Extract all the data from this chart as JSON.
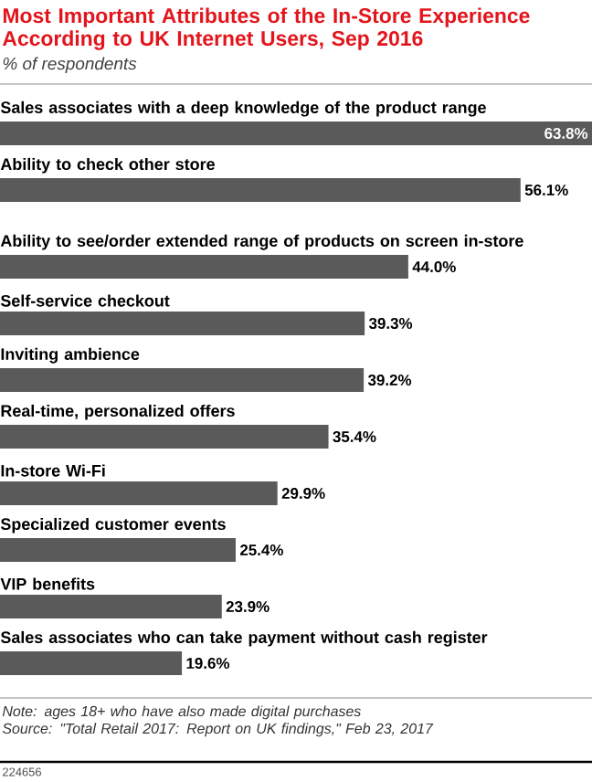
{
  "chart_data": {
    "type": "bar",
    "orientation": "horizontal",
    "title": "Most Important Attributes of the In-Store Experience According to UK Internet Users, Sep 2016",
    "subtitle": "% of respondents",
    "categories": [
      "Sales associates with a deep knowledge of the product range",
      "Ability to check other store",
      "Ability to see/order extended range of products on screen in-store",
      "Self-service checkout",
      "Inviting ambience",
      "Real-time, personalized offers",
      "In-store Wi-Fi",
      "Specialized customer events",
      "VIP benefits",
      "Sales associates who can take payment without cash register"
    ],
    "values": [
      63.8,
      56.1,
      44.0,
      39.3,
      39.2,
      35.4,
      29.9,
      25.4,
      23.9,
      19.6
    ],
    "value_labels": [
      "63.8%",
      "56.1%",
      "44.0%",
      "39.3%",
      "39.2%",
      "35.4%",
      "29.9%",
      "25.4%",
      "23.9%",
      "19.6%"
    ],
    "color": "#5a5a5a",
    "annotations": [
      "Note: ages 18+ who have also made digital purchases",
      "Source: \"Total Retail 2017: Report on UK findings,\" Feb 23, 2017",
      "224656"
    ]
  }
}
